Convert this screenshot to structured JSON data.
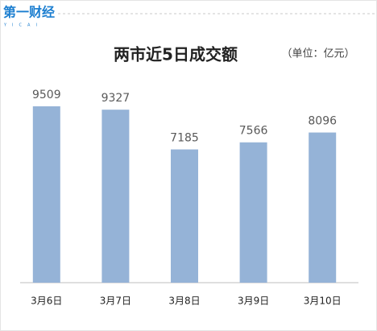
{
  "logo": {
    "text": "第一财经",
    "subtext": "YICAI"
  },
  "chart_data": {
    "type": "bar",
    "title": "两市近5日成交额",
    "unit": "（单位：亿元）",
    "categories": [
      "3月6日",
      "3月7日",
      "3月8日",
      "3月9日",
      "3月10日"
    ],
    "values": [
      9509,
      9327,
      7185,
      7566,
      8096
    ],
    "color": "#95b3d7"
  }
}
